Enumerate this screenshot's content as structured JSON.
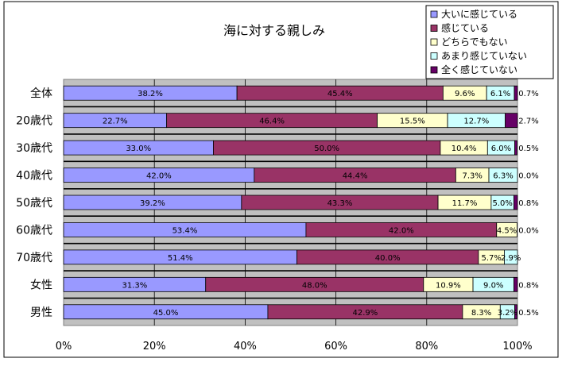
{
  "chart_data": {
    "type": "bar",
    "orientation": "horizontal",
    "stacked": true,
    "normalized": true,
    "title": "海に対する親しみ",
    "categories": [
      "全体",
      "20歳代",
      "30歳代",
      "40歳代",
      "50歳代",
      "60歳代",
      "70歳代",
      "女性",
      "男性"
    ],
    "x_ticks": [
      "0%",
      "20%",
      "40%",
      "60%",
      "80%",
      "100%"
    ],
    "xlim": [
      0,
      100
    ],
    "grid": true,
    "legend_position": "top-right",
    "series": [
      {
        "name": "大いに感じている",
        "color": "#9999ff",
        "values": [
          38.2,
          22.7,
          33.0,
          42.0,
          39.2,
          53.4,
          51.4,
          31.3,
          45.0
        ],
        "labels": [
          "38.2%",
          "22.7%",
          "33.0%",
          "42.0%",
          "39.2%",
          "53.4%",
          "51.4%",
          "31.3%",
          "45.0%"
        ]
      },
      {
        "name": "感じている",
        "color": "#993366",
        "values": [
          45.4,
          46.4,
          50.0,
          44.4,
          43.3,
          42.0,
          40.0,
          48.0,
          42.9
        ],
        "labels": [
          "45.4%",
          "46.4%",
          "50.0%",
          "44.4%",
          "43.3%",
          "42.0%",
          "40.0%",
          "48.0%",
          "42.9%"
        ]
      },
      {
        "name": "どちらでもない",
        "color": "#ffffcc",
        "values": [
          9.6,
          15.5,
          10.4,
          7.3,
          11.7,
          4.5,
          5.7,
          10.9,
          8.3
        ],
        "labels": [
          "9.6%",
          "15.5%",
          "10.4%",
          "7.3%",
          "11.7%",
          "4.5%",
          "5.7%",
          "10.9%",
          "8.3%"
        ]
      },
      {
        "name": "あまり感じていない",
        "color": "#ccffff",
        "values": [
          6.1,
          12.7,
          6.0,
          6.3,
          5.0,
          0.0,
          2.9,
          9.0,
          3.2
        ],
        "labels": [
          "6.1%",
          "12.7%",
          "6.0%",
          "6.3%",
          "5.0%",
          "",
          "2.9%",
          "9.0%",
          "3.2%"
        ]
      },
      {
        "name": "全く感じていない",
        "color": "#660066",
        "values": [
          0.7,
          2.7,
          0.5,
          0.0,
          0.8,
          0.0,
          0.0,
          0.8,
          0.5
        ],
        "labels": [
          "0.7%",
          "2.7%",
          "0.5%",
          "0.0%",
          "0.8%",
          "0.0%",
          "",
          "0.8%",
          "0.5%"
        ]
      }
    ]
  }
}
